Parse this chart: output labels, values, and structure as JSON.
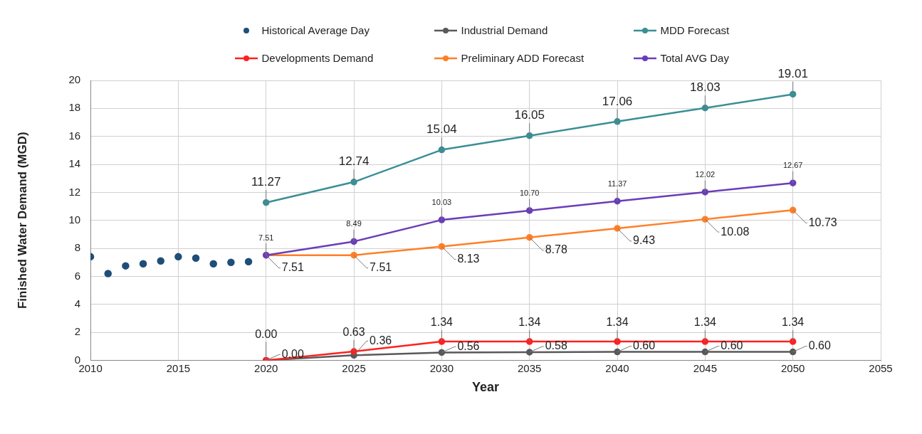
{
  "chart_data": {
    "type": "line",
    "xlabel": "Year",
    "ylabel": "Finished Water Demand (MGD)",
    "xlim": [
      2010,
      2055
    ],
    "xticks": [
      2010,
      2015,
      2020,
      2025,
      2030,
      2035,
      2040,
      2045,
      2050,
      2055
    ],
    "ylim": [
      0,
      20
    ],
    "yticks": [
      0,
      2,
      4,
      6,
      8,
      10,
      12,
      14,
      16,
      18,
      20
    ],
    "grid": true,
    "legend": "top",
    "marker": "circle",
    "line_style": "solid",
    "series": [
      {
        "name": "Historical Average Day",
        "type": "scatter",
        "color": "#1f4e79",
        "x": [
          2010,
          2011,
          2012,
          2013,
          2014,
          2015,
          2016,
          2017,
          2018,
          2019
        ],
        "values": [
          7.4,
          6.2,
          6.75,
          6.9,
          7.1,
          7.4,
          7.3,
          6.9,
          7.0,
          7.05
        ]
      },
      {
        "name": "Industrial Demand",
        "color": "#595959",
        "x": [
          2020,
          2025,
          2030,
          2035,
          2040,
          2045,
          2050
        ],
        "values": [
          0,
          0.36,
          0.56,
          0.58,
          0.6,
          0.6,
          0.6
        ],
        "value_labels": [
          "0.00",
          "0.36",
          "0.56",
          "0.58",
          "0.60",
          "0.60",
          "0.60"
        ]
      },
      {
        "name": "MDD Forecast",
        "color": "#3a8f95",
        "x": [
          2020,
          2025,
          2030,
          2035,
          2040,
          2045,
          2050
        ],
        "values": [
          11.27,
          12.74,
          15.04,
          16.05,
          17.06,
          18.03,
          19.01
        ],
        "value_labels": [
          "11.27",
          "12.74",
          "15.04",
          "16.05",
          "17.06",
          "18.03",
          "19.01"
        ]
      },
      {
        "name": "Developments Demand",
        "color": "#ff2020",
        "x": [
          2020,
          2025,
          2030,
          2035,
          2040,
          2045,
          2050
        ],
        "values": [
          0,
          0.63,
          1.34,
          1.34,
          1.34,
          1.34,
          1.34
        ],
        "value_labels": [
          "0.00",
          "0.63",
          "1.34",
          "1.34",
          "1.34",
          "1.34",
          "1.34"
        ]
      },
      {
        "name": "Preliminary ADD Forecast",
        "color": "#ff7f27",
        "x": [
          2020,
          2025,
          2030,
          2035,
          2040,
          2045,
          2050
        ],
        "values": [
          7.51,
          7.51,
          8.13,
          8.78,
          9.43,
          10.08,
          10.73
        ],
        "value_labels": [
          "7.51",
          "7.51",
          "8.13",
          "8.78",
          "9.43",
          "10.08",
          "10.73"
        ]
      },
      {
        "name": "Total AVG Day",
        "color": "#6a3db8",
        "x": [
          2020,
          2025,
          2030,
          2035,
          2040,
          2045,
          2050
        ],
        "values": [
          7.51,
          8.49,
          10.03,
          10.7,
          11.37,
          12.02,
          12.67
        ],
        "value_labels": [
          "7.51",
          "8.49",
          "10.03",
          "10.70",
          "11.37",
          "12.02",
          "12.67"
        ]
      }
    ]
  }
}
